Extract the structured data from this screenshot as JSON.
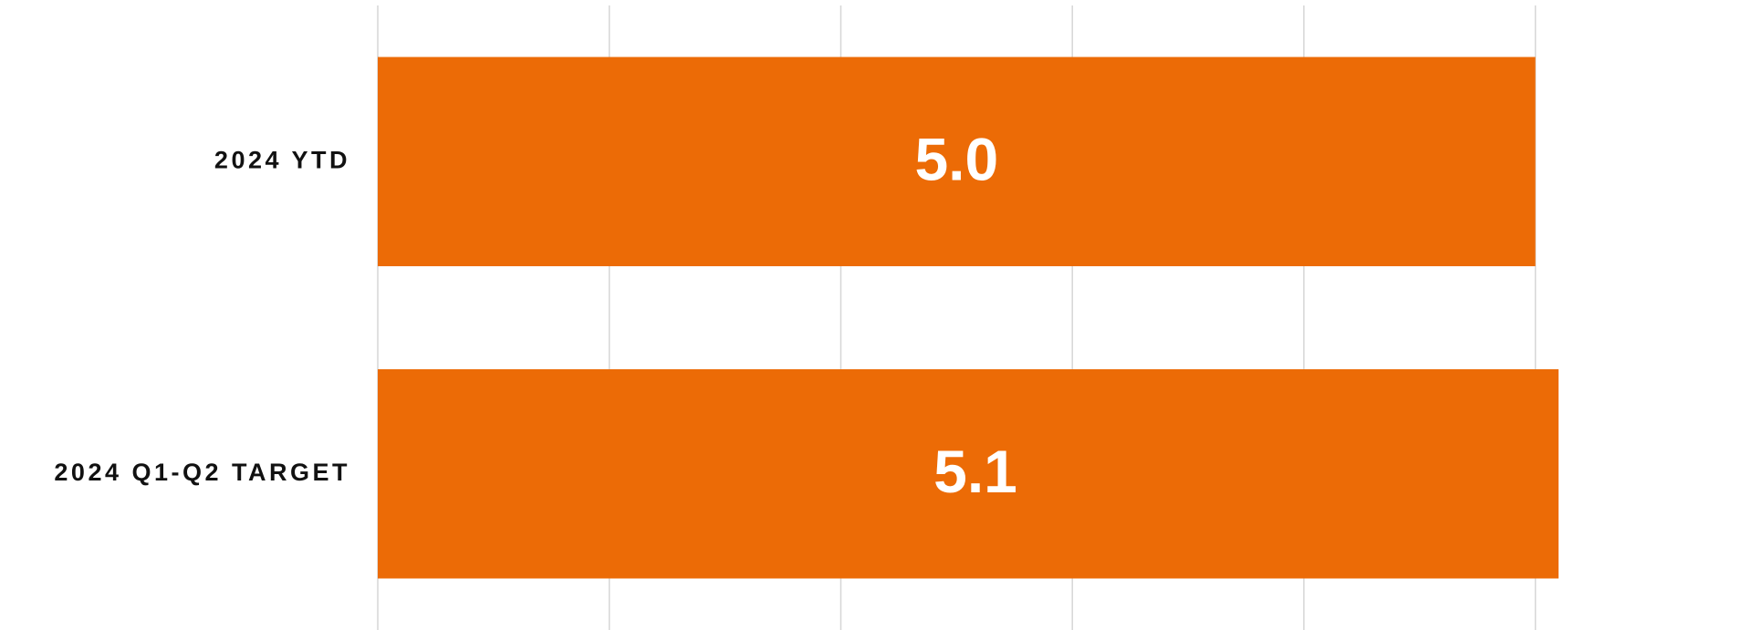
{
  "chart_data": {
    "type": "barh",
    "categories": [
      "2024 YTD",
      "2024 Q1-Q2 TARGET"
    ],
    "values": [
      5,
      5.1
    ],
    "value_labels": [
      "5.0",
      "5.1"
    ],
    "color": "#ec6b06",
    "xlim": [
      0,
      5.9
    ],
    "xticks": [
      0,
      1,
      2,
      3,
      4,
      5
    ],
    "grid": true
  }
}
